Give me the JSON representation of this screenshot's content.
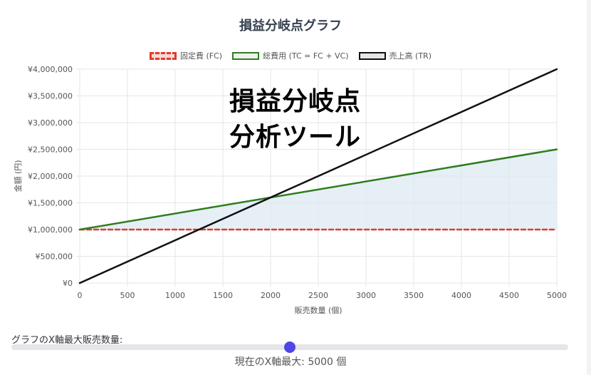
{
  "title": "損益分岐点グラフ",
  "overlay_lines": [
    "損益分岐点",
    "分析ツール"
  ],
  "legend": {
    "fc": "固定費 (FC)",
    "tc": "総費用 (TC = FC + VC)",
    "tr": "売上高 (TR)"
  },
  "slider": {
    "label": "グラフのX軸最大販売数量:",
    "value_text": "現在のX軸最大: 5000 個",
    "value": 5000
  },
  "colors": {
    "fc": "#e03b2d",
    "tc": "#2e7d1f",
    "tr": "#111111",
    "fill": "#dbe8f2",
    "thumb": "#4f46e5"
  },
  "chart_data": {
    "type": "line",
    "title": "損益分岐点グラフ",
    "xlabel": "販売数量 (個)",
    "ylabel": "金額 (円)",
    "xlim": [
      0,
      5000
    ],
    "ylim": [
      0,
      4000000
    ],
    "x_ticks": [
      "0",
      "500",
      "1000",
      "1500",
      "2000",
      "2500",
      "3000",
      "3500",
      "4000",
      "4500",
      "5000"
    ],
    "y_ticks": [
      "¥0",
      "¥500,000",
      "¥1,000,000",
      "¥1,500,000",
      "¥2,000,000",
      "¥2,500,000",
      "¥3,000,000",
      "¥3,500,000",
      "¥4,000,000"
    ],
    "legend_position": "top",
    "grid": true,
    "series": [
      {
        "name": "固定費 (FC)",
        "key": "fc",
        "style": "dashed",
        "x": [
          0,
          5000
        ],
        "y": [
          1000000,
          1000000
        ]
      },
      {
        "name": "総費用 (TC = FC + VC)",
        "key": "tc",
        "style": "solid",
        "x": [
          0,
          5000
        ],
        "y": [
          1000000,
          2500000
        ]
      },
      {
        "name": "売上高 (TR)",
        "key": "tr",
        "style": "solid",
        "x": [
          0,
          5000
        ],
        "y": [
          0,
          4000000
        ]
      }
    ]
  }
}
